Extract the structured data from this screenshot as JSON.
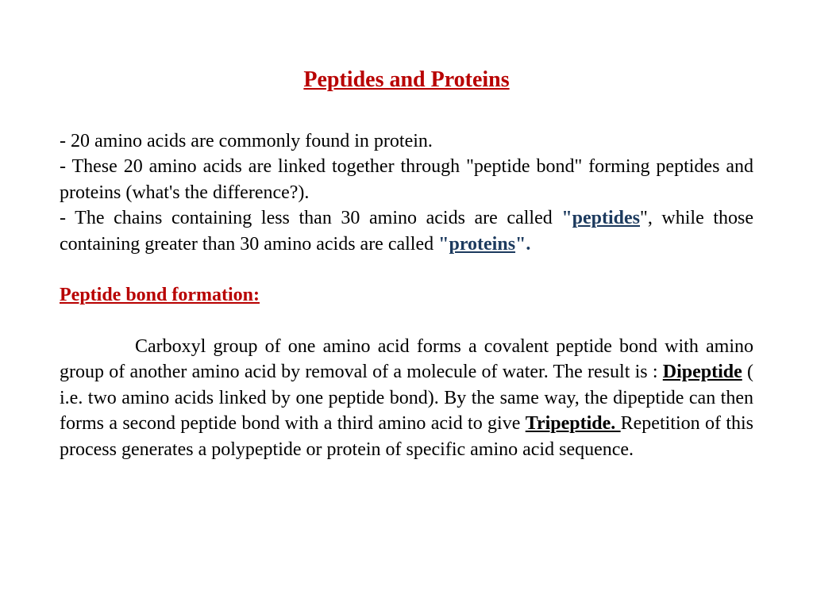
{
  "title": "Peptides and Proteins",
  "intro": {
    "line1": "- 20 amino acids are commonly found in protein.",
    "line2a": "- These 20 amino acids are linked together through \"peptide bond\" forming peptides and proteins (what's the difference?).",
    "line3a": " - The chains containing less than 30 amino acids are called ",
    "quote1": "\"",
    "peptides": "peptides",
    "line3b": "\", while those containing greater than 30 amino acids are called ",
    "quote2": "\"",
    "proteins": "proteins",
    "quote3": "\"."
  },
  "section_heading": "Peptide bond formation:",
  "body": {
    "part1": "Carboxyl group of one amino acid forms a covalent peptide bond with amino group of another amino acid by removal of a  molecule of water. The result is : ",
    "dipeptide": "Dipeptide",
    "part2": " ( i.e. two amino acids linked by one peptide bond). By the same way,  the dipeptide can then forms a second peptide bond with a third amino acid to give ",
    "tripeptide": "Tripeptide. ",
    "part3": "Repetition of this process generates a polypeptide or protein of specific amino acid sequence."
  },
  "style": {
    "title_color": "#b80000",
    "navy_color": "#1c3a5e",
    "body_fontsize": 24,
    "title_fontsize": 28,
    "background_color": "#ffffff",
    "font_family": "Times New Roman"
  }
}
